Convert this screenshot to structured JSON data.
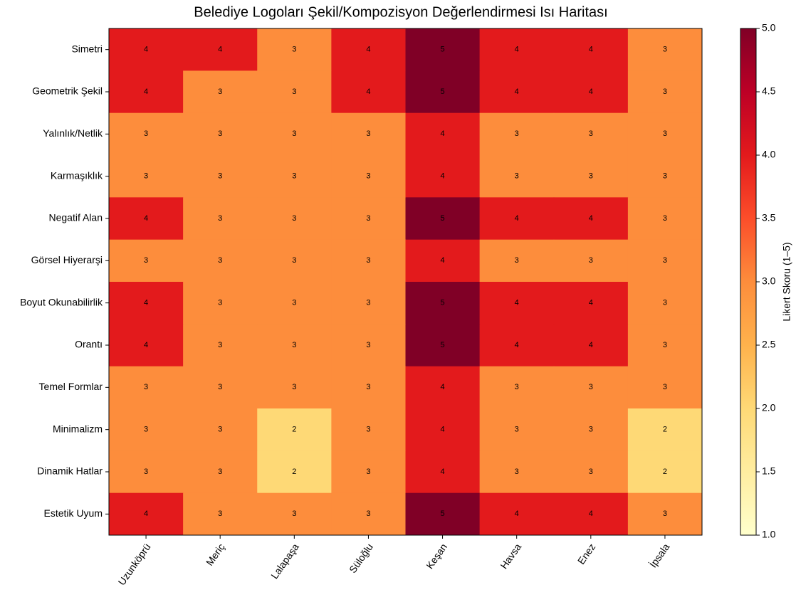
{
  "chart_data": {
    "type": "heatmap",
    "title": "Belediye Logoları Şekil/Kompozisyon Değerlendirmesi Isı Haritası",
    "categories": [
      "Uzunköprü",
      "Meriç",
      "Lalapaşa",
      "Süloğlu",
      "Keşan",
      "Havsa",
      "Enez",
      "İpsala"
    ],
    "rows": [
      "Simetri",
      "Geometrik Şekil",
      "Yalınlık/Netlik",
      "Karmaşıklık",
      "Negatif Alan",
      "Görsel Hiyerarşi",
      "Boyut Okunabilirlik",
      "Orantı",
      "Temel Formlar",
      "Minimalizm",
      "Dinamik Hatlar",
      "Estetik Uyum"
    ],
    "values": [
      [
        4,
        4,
        3,
        4,
        5,
        4,
        4,
        3
      ],
      [
        4,
        3,
        3,
        4,
        5,
        4,
        4,
        3
      ],
      [
        3,
        3,
        3,
        3,
        4,
        3,
        3,
        3
      ],
      [
        3,
        3,
        3,
        3,
        4,
        3,
        3,
        3
      ],
      [
        4,
        3,
        3,
        3,
        5,
        4,
        4,
        3
      ],
      [
        3,
        3,
        3,
        3,
        4,
        3,
        3,
        3
      ],
      [
        4,
        3,
        3,
        3,
        5,
        4,
        4,
        3
      ],
      [
        4,
        3,
        3,
        3,
        5,
        4,
        4,
        3
      ],
      [
        3,
        3,
        3,
        3,
        4,
        3,
        3,
        3
      ],
      [
        3,
        3,
        2,
        3,
        4,
        3,
        3,
        2
      ],
      [
        3,
        3,
        2,
        3,
        4,
        3,
        3,
        2
      ],
      [
        4,
        3,
        3,
        3,
        5,
        4,
        4,
        3
      ]
    ],
    "colormap": [
      "#ffffcc",
      "#ffeda0",
      "#fed976",
      "#feb24c",
      "#fd8d3c",
      "#fc4e2a",
      "#e31a1c",
      "#bd0026",
      "#800026"
    ],
    "colorbar_label": "Likert Skoru (1–5)",
    "clim": [
      1,
      5
    ],
    "cticks": [
      {
        "value": 1,
        "label": "1.0"
      },
      1.5,
      {
        "value": 2,
        "label": "2.0"
      },
      2.5,
      {
        "value": 3,
        "label": "3.0"
      },
      3.5,
      {
        "value": 4,
        "label": "4.0"
      },
      4.5,
      {
        "value": 5,
        "label": "5.0"
      }
    ]
  }
}
